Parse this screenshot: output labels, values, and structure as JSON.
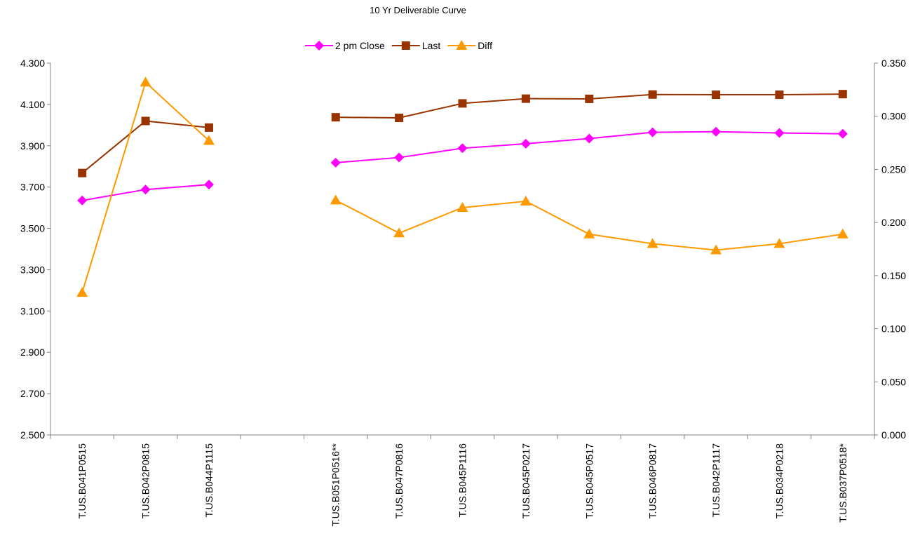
{
  "chart_data": {
    "type": "line",
    "title": "10 Yr Deliverable Curve",
    "categories": [
      "T.US.B041P0515",
      "T.US.B042P0815",
      "T.US.B044P1115",
      "",
      "T.US.B051P0516**",
      "T.US.B047P0816",
      "T.US.B045P1116",
      "T.US.B045P0217",
      "T.US.B045P0517",
      "T.US.B046P0817",
      "T.US.B042P1117",
      "T.US.B034P0218",
      "T.US.B037P0518*"
    ],
    "left_axis": {
      "ylim": [
        2.5,
        4.3
      ],
      "ticks": [
        "2.500",
        "2.700",
        "2.900",
        "3.100",
        "3.300",
        "3.500",
        "3.700",
        "3.900",
        "4.100",
        "4.300"
      ],
      "tick_values": [
        2.5,
        2.7,
        2.9,
        3.1,
        3.3,
        3.5,
        3.7,
        3.9,
        4.1,
        4.3
      ]
    },
    "right_axis": {
      "ylim": [
        0.0,
        0.35
      ],
      "ticks": [
        "0.000",
        "0.050",
        "0.100",
        "0.150",
        "0.200",
        "0.250",
        "0.300",
        "0.350"
      ],
      "tick_values": [
        0.0,
        0.05,
        0.1,
        0.15,
        0.2,
        0.25,
        0.3,
        0.35
      ]
    },
    "series": [
      {
        "name": "2 pm  Close",
        "axis": "left",
        "marker": "diamond",
        "color": "#ff00ff",
        "values": [
          3.635,
          3.688,
          3.712,
          null,
          3.818,
          3.843,
          3.888,
          3.91,
          3.935,
          3.965,
          3.968,
          3.962,
          3.958
        ]
      },
      {
        "name": "Last",
        "axis": "left",
        "marker": "square",
        "color": "#993300",
        "values": [
          3.768,
          4.02,
          3.988,
          null,
          4.038,
          4.035,
          4.105,
          4.128,
          4.127,
          4.148,
          4.147,
          4.147,
          4.15
        ]
      },
      {
        "name": "Diff",
        "axis": "right",
        "marker": "triangle",
        "color": "#ff9900",
        "values": [
          0.134,
          0.332,
          0.277,
          null,
          0.221,
          0.19,
          0.214,
          0.22,
          0.189,
          0.18,
          0.174,
          0.18,
          0.189
        ]
      }
    ],
    "legend_position": "top-center",
    "grid": false
  }
}
